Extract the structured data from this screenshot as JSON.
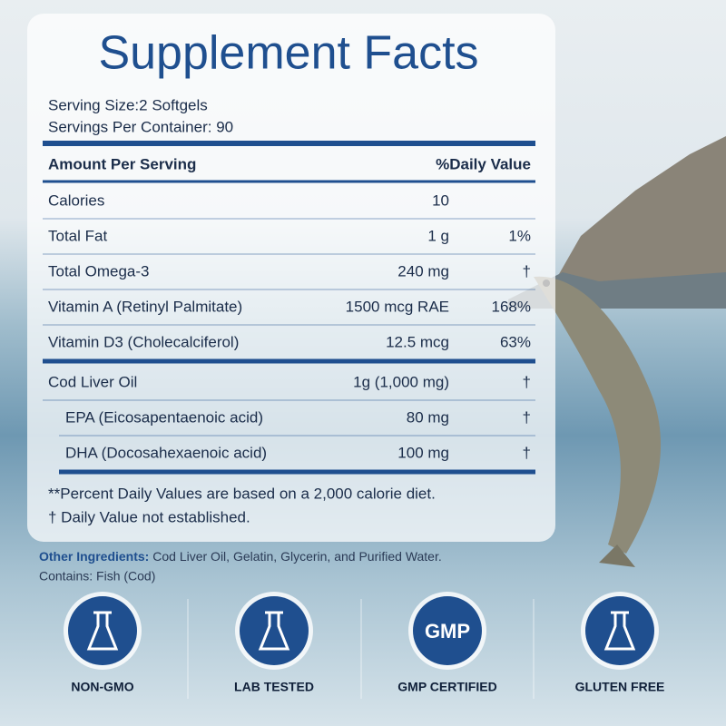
{
  "title": "Supplement Facts",
  "serving": [
    "Serving Size:2 Softgels",
    "Servings Per Container: 90"
  ],
  "table": {
    "header": [
      "Amount Per Serving",
      "%Daily Value"
    ],
    "sections": [
      [
        {
          "name": "Calories",
          "amount": "10"
        },
        {
          "name": "Total Fat",
          "amount": "1 g",
          "dv": "1%"
        },
        {
          "name": "Total Omega-3",
          "amount": "240 mg",
          "dv": "†"
        },
        {
          "name": "Vitamin A (Retinyl Palmitate)",
          "amount": "1500 mcg RAE",
          "dv": "168%"
        },
        {
          "name": "Vitamin D3 (Cholecalciferol)",
          "amount": "12.5 mcg",
          "dv": "63%"
        }
      ],
      [
        {
          "name": "Cod Liver Oil",
          "amount": "1g (1,000 mg)",
          "dv": "†"
        },
        {
          "name": "EPA (Eicosapentaenoic acid)",
          "amount": "80 mg",
          "dv": "†",
          "sub": true
        },
        {
          "name": "DHA (Docosahexaenoic acid)",
          "amount": "100 mg",
          "dv": "†",
          "sub": true
        }
      ]
    ]
  },
  "footnotes": [
    "**Percent Daily Values are based on a 2,000 calorie diet.",
    "† Daily Value not established."
  ],
  "other_ingredients": {
    "label": "Other Ingredients:",
    "text": "Cod Liver Oil, Gelatin, Glycerin, and Purified Water."
  },
  "contains": "Contains: Fish (Cod)",
  "badges": [
    {
      "label": "NON-GMO"
    },
    {
      "label": "LAB TESTED"
    },
    {
      "label": "GMP CERTIFIED",
      "icon_text": "GMP"
    },
    {
      "label": "GLUTEN FREE"
    }
  ]
}
